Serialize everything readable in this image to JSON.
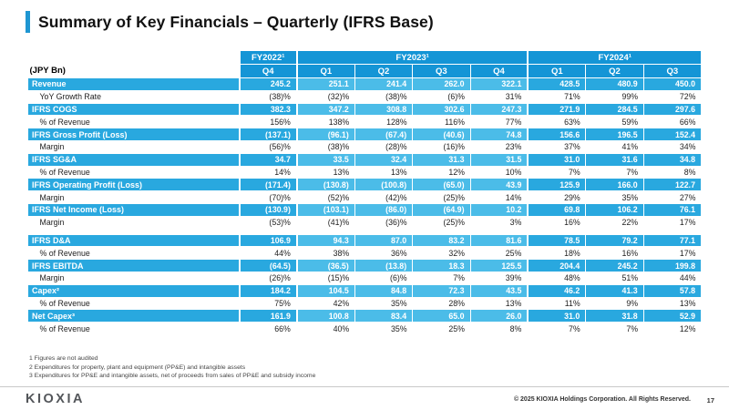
{
  "slide": {
    "title": "Summary of Key Financials – Quarterly (IFRS Base)",
    "unit_label": "(JPY Bn)"
  },
  "colors": {
    "accent_blue": "#1e96d2",
    "header_blue": "#1495d6",
    "row_cyan_dark": "#29a8df",
    "row_cyan_light": "#4bbce8"
  },
  "table": {
    "year_groups": [
      {
        "label": "FY2022¹",
        "quarters": [
          "Q4"
        ]
      },
      {
        "label": "FY2023¹",
        "quarters": [
          "Q1",
          "Q2",
          "Q3",
          "Q4"
        ]
      },
      {
        "label": "FY2024¹",
        "quarters": [
          "Q1",
          "Q2",
          "Q3"
        ]
      }
    ],
    "sections": [
      {
        "rows": [
          {
            "label": "Revenue",
            "highlight": true,
            "values": [
              "245.2",
              "251.1",
              "241.4",
              "262.0",
              "322.1",
              "428.5",
              "480.9",
              "450.0"
            ]
          },
          {
            "label": "YoY Growth Rate",
            "highlight": false,
            "values": [
              "(38)%",
              "(32)%",
              "(38)%",
              "(6)%",
              "31%",
              "71%",
              "99%",
              "72%"
            ]
          },
          {
            "label": "IFRS COGS",
            "highlight": true,
            "values": [
              "382.3",
              "347.2",
              "308.8",
              "302.6",
              "247.3",
              "271.9",
              "284.5",
              "297.6"
            ]
          },
          {
            "label": "% of Revenue",
            "highlight": false,
            "values": [
              "156%",
              "138%",
              "128%",
              "116%",
              "77%",
              "63%",
              "59%",
              "66%"
            ]
          },
          {
            "label": "IFRS Gross Profit (Loss)",
            "highlight": true,
            "values": [
              "(137.1)",
              "(96.1)",
              "(67.4)",
              "(40.6)",
              "74.8",
              "156.6",
              "196.5",
              "152.4"
            ]
          },
          {
            "label": "Margin",
            "highlight": false,
            "values": [
              "(56)%",
              "(38)%",
              "(28)%",
              "(16)%",
              "23%",
              "37%",
              "41%",
              "34%"
            ]
          },
          {
            "label": "IFRS SG&A",
            "highlight": true,
            "values": [
              "34.7",
              "33.5",
              "32.4",
              "31.3",
              "31.5",
              "31.0",
              "31.6",
              "34.8"
            ]
          },
          {
            "label": "% of Revenue",
            "highlight": false,
            "values": [
              "14%",
              "13%",
              "13%",
              "12%",
              "10%",
              "7%",
              "7%",
              "8%"
            ]
          },
          {
            "label": "IFRS Operating Profit (Loss)",
            "highlight": true,
            "values": [
              "(171.4)",
              "(130.8)",
              "(100.8)",
              "(65.0)",
              "43.9",
              "125.9",
              "166.0",
              "122.7"
            ]
          },
          {
            "label": "Margin",
            "highlight": false,
            "values": [
              "(70)%",
              "(52)%",
              "(42)%",
              "(25)%",
              "14%",
              "29%",
              "35%",
              "27%"
            ]
          },
          {
            "label": "IFRS Net Income (Loss)",
            "highlight": true,
            "values": [
              "(130.9)",
              "(103.1)",
              "(86.0)",
              "(64.9)",
              "10.2",
              "69.8",
              "106.2",
              "76.1"
            ]
          },
          {
            "label": "Margin",
            "highlight": false,
            "values": [
              "(53)%",
              "(41)%",
              "(36)%",
              "(25)%",
              "3%",
              "16%",
              "22%",
              "17%"
            ]
          }
        ]
      },
      {
        "rows": [
          {
            "label": "IFRS D&A",
            "highlight": true,
            "values": [
              "106.9",
              "94.3",
              "87.0",
              "83.2",
              "81.6",
              "78.5",
              "79.2",
              "77.1"
            ]
          },
          {
            "label": "% of Revenue",
            "highlight": false,
            "values": [
              "44%",
              "38%",
              "36%",
              "32%",
              "25%",
              "18%",
              "16%",
              "17%"
            ]
          },
          {
            "label": "IFRS EBITDA",
            "highlight": true,
            "values": [
              "(64.5)",
              "(36.5)",
              "(13.8)",
              "18.3",
              "125.5",
              "204.4",
              "245.2",
              "199.8"
            ]
          },
          {
            "label": "Margin",
            "highlight": false,
            "values": [
              "(26)%",
              "(15)%",
              "(6)%",
              "7%",
              "39%",
              "48%",
              "51%",
              "44%"
            ]
          },
          {
            "label": "Capex²",
            "highlight": true,
            "values": [
              "184.2",
              "104.5",
              "84.8",
              "72.3",
              "43.5",
              "46.2",
              "41.3",
              "57.8"
            ]
          },
          {
            "label": "% of Revenue",
            "highlight": false,
            "values": [
              "75%",
              "42%",
              "35%",
              "28%",
              "13%",
              "11%",
              "9%",
              "13%"
            ]
          },
          {
            "label": "Net Capex³",
            "highlight": true,
            "values": [
              "161.9",
              "100.8",
              "83.4",
              "65.0",
              "26.0",
              "31.0",
              "31.8",
              "52.9"
            ]
          },
          {
            "label": "% of Revenue",
            "highlight": false,
            "values": [
              "66%",
              "40%",
              "35%",
              "25%",
              "8%",
              "7%",
              "7%",
              "12%"
            ]
          }
        ]
      }
    ]
  },
  "footnotes": [
    "1  Figures are not audited",
    "2  Expenditures for property, plant and equipment (PP&E) and intangible assets",
    "3  Expenditures for PP&E and intangible assets, net of proceeds from sales of PP&E and subsidy income"
  ],
  "footer": {
    "logo": "KIOXIA",
    "copyright": "© 2025 KIOXIA Holdings Corporation. All Rights Reserved.",
    "page_number": "17"
  }
}
